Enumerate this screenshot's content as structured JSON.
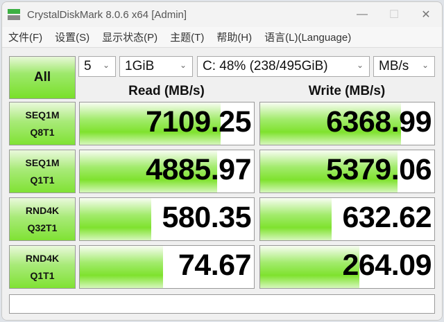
{
  "window": {
    "title": "CrystalDiskMark 8.0.6 x64 [Admin]",
    "minimize": "—",
    "maximize": "☐",
    "close": "✕"
  },
  "menu": [
    "文件(F)",
    "设置(S)",
    "显示状态(P)",
    "主题(T)",
    "帮助(H)",
    "语言(L)(Language)"
  ],
  "controls": {
    "all_label": "All",
    "count": "5",
    "size": "1GiB",
    "drive": "C: 48% (238/495GiB)",
    "unit": "MB/s",
    "chevron": "⌄"
  },
  "headers": {
    "read": "Read (MB/s)",
    "write": "Write (MB/s)"
  },
  "accent": "#7fe22e",
  "tests": [
    {
      "line1": "SEQ1M",
      "line2": "Q8T1",
      "read": "7109.25",
      "write": "6368.99",
      "read_fill": 0.81,
      "write_fill": 0.81
    },
    {
      "line1": "SEQ1M",
      "line2": "Q1T1",
      "read": "4885.97",
      "write": "5379.06",
      "read_fill": 0.79,
      "write_fill": 0.79
    },
    {
      "line1": "RND4K",
      "line2": "Q32T1",
      "read": "580.35",
      "write": "632.62",
      "read_fill": 0.41,
      "write_fill": 0.41
    },
    {
      "line1": "RND4K",
      "line2": "Q1T1",
      "read": "74.67",
      "write": "264.09",
      "read_fill": 0.48,
      "write_fill": 0.57
    }
  ],
  "comment": ""
}
